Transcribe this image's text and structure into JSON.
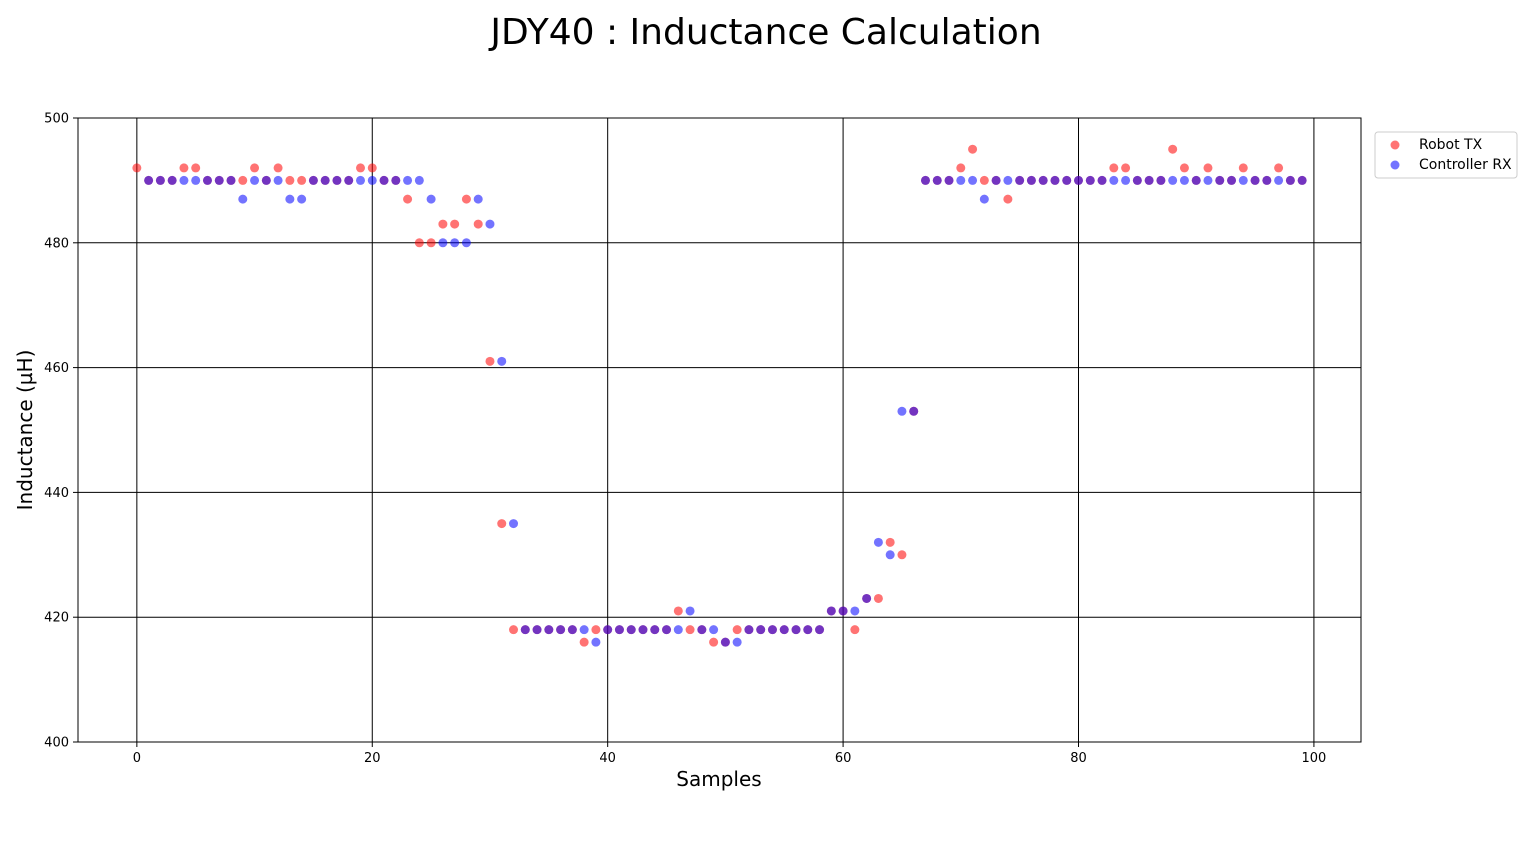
{
  "chart_data": {
    "type": "scatter",
    "title": "JDY40 : Inductance Calculation",
    "xlabel": "Samples",
    "ylabel": "Inductance (µH)",
    "xlim": [
      -5,
      104
    ],
    "ylim": [
      400,
      500
    ],
    "xticks": [
      0,
      20,
      40,
      60,
      80,
      100
    ],
    "yticks": [
      400,
      420,
      440,
      460,
      480,
      500
    ],
    "grid": true,
    "legend_position": "outside-top-right",
    "series": [
      {
        "name": "Robot TX",
        "color": "#ff0000",
        "x": [
          0,
          1,
          2,
          3,
          4,
          5,
          6,
          7,
          8,
          9,
          10,
          11,
          12,
          13,
          14,
          15,
          16,
          17,
          18,
          19,
          20,
          21,
          22,
          23,
          24,
          25,
          26,
          27,
          28,
          29,
          30,
          31,
          32,
          33,
          34,
          35,
          36,
          37,
          38,
          39,
          40,
          41,
          42,
          43,
          44,
          45,
          46,
          47,
          48,
          49,
          50,
          51,
          52,
          53,
          54,
          55,
          56,
          57,
          58,
          59,
          60,
          61,
          62,
          63,
          64,
          65,
          66,
          67,
          68,
          69,
          70,
          71,
          72,
          73,
          74,
          75,
          76,
          77,
          78,
          79,
          80,
          81,
          82,
          83,
          84,
          85,
          86,
          87,
          88,
          89,
          90,
          91,
          92,
          93,
          94,
          95,
          96,
          97,
          98,
          99
        ],
        "y": [
          492,
          490,
          490,
          490,
          492,
          492,
          490,
          490,
          490,
          490,
          492,
          490,
          492,
          490,
          490,
          490,
          490,
          490,
          490,
          492,
          492,
          490,
          490,
          487,
          480,
          480,
          483,
          483,
          487,
          483,
          461,
          435,
          418,
          418,
          418,
          418,
          418,
          418,
          416,
          418,
          418,
          418,
          418,
          418,
          418,
          418,
          421,
          418,
          418,
          416,
          416,
          418,
          418,
          418,
          418,
          418,
          418,
          418,
          418,
          421,
          421,
          418,
          423,
          423,
          432,
          430,
          453,
          490,
          490,
          490,
          492,
          495,
          490,
          490,
          487,
          490,
          490,
          490,
          490,
          490,
          490,
          490,
          490,
          492,
          492,
          490,
          490,
          490,
          495,
          492,
          490,
          492,
          490,
          490,
          492,
          490,
          490,
          492,
          490,
          490
        ]
      },
      {
        "name": "Controller RX",
        "color": "#0000ff",
        "x": [
          1,
          2,
          3,
          4,
          5,
          6,
          7,
          8,
          9,
          10,
          11,
          12,
          13,
          14,
          15,
          16,
          17,
          18,
          19,
          20,
          21,
          22,
          23,
          24,
          25,
          26,
          27,
          28,
          29,
          30,
          31,
          32,
          33,
          34,
          35,
          36,
          37,
          38,
          39,
          40,
          41,
          42,
          43,
          44,
          45,
          46,
          47,
          48,
          49,
          50,
          51,
          52,
          53,
          54,
          55,
          56,
          57,
          58,
          59,
          60,
          61,
          62,
          63,
          64,
          65,
          66,
          67,
          68,
          69,
          70,
          71,
          72,
          73,
          74,
          75,
          76,
          77,
          78,
          79,
          80,
          81,
          82,
          83,
          84,
          85,
          86,
          87,
          88,
          89,
          90,
          91,
          92,
          93,
          94,
          95,
          96,
          97,
          98,
          99
        ],
        "y": [
          490,
          490,
          490,
          490,
          490,
          490,
          490,
          490,
          487,
          490,
          490,
          490,
          487,
          487,
          490,
          490,
          490,
          490,
          490,
          490,
          490,
          490,
          490,
          490,
          487,
          480,
          480,
          480,
          487,
          483,
          461,
          435,
          418,
          418,
          418,
          418,
          418,
          418,
          416,
          418,
          418,
          418,
          418,
          418,
          418,
          418,
          421,
          418,
          418,
          416,
          416,
          418,
          418,
          418,
          418,
          418,
          418,
          418,
          421,
          421,
          421,
          423,
          432,
          430,
          453,
          453,
          490,
          490,
          490,
          490,
          490,
          487,
          490,
          490,
          490,
          490,
          490,
          490,
          490,
          490,
          490,
          490,
          490,
          490,
          490,
          490,
          490,
          490,
          490,
          490,
          490,
          490,
          490,
          490,
          490,
          490,
          490,
          490,
          490
        ]
      }
    ]
  }
}
